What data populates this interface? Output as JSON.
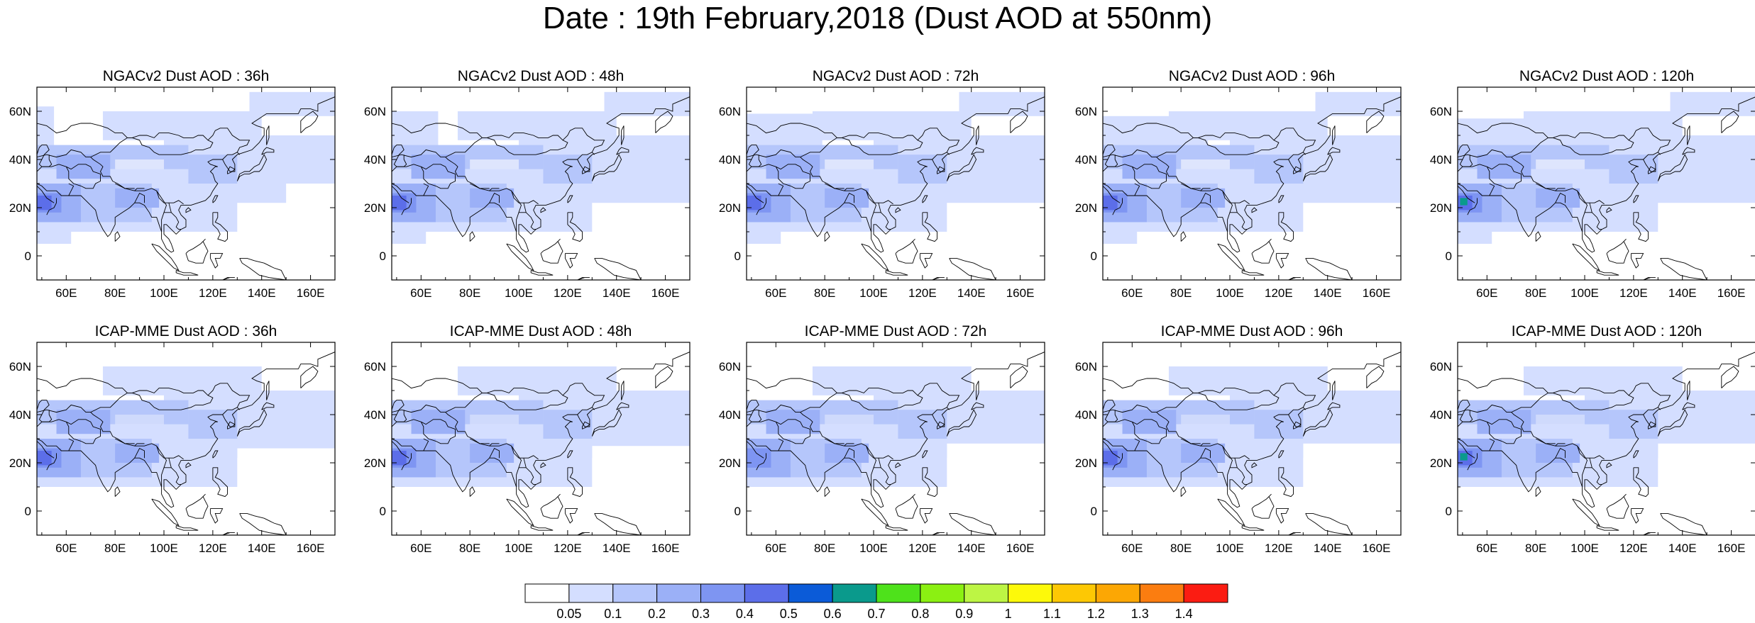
{
  "title": "Date : 19th February,2018 (Dust AOD at 550nm)",
  "panels": [
    {
      "title": "NGACv2 Dust AOD : 36h"
    },
    {
      "title": "NGACv2 Dust AOD : 48h"
    },
    {
      "title": "NGACv2 Dust AOD : 72h"
    },
    {
      "title": "NGACv2 Dust AOD : 96h"
    },
    {
      "title": "NGACv2 Dust AOD : 120h"
    },
    {
      "title": "ICAP-MME Dust AOD : 36h"
    },
    {
      "title": "ICAP-MME Dust AOD : 48h"
    },
    {
      "title": "ICAP-MME Dust AOD : 72h"
    },
    {
      "title": "ICAP-MME Dust AOD : 96h"
    },
    {
      "title": "ICAP-MME Dust AOD : 120h"
    }
  ],
  "map": {
    "lon_range": [
      48,
      170
    ],
    "lat_range": [
      -10,
      70
    ],
    "lon_ticks": [
      "60E",
      "80E",
      "100E",
      "120E",
      "140E",
      "160E"
    ],
    "lat_ticks": [
      "60N",
      "40N",
      "20N",
      "0"
    ]
  },
  "colorbar": {
    "labels": [
      "0.05",
      "0.1",
      "0.2",
      "0.3",
      "0.4",
      "0.5",
      "0.6",
      "0.7",
      "0.8",
      "0.9",
      "1",
      "1.1",
      "1.2",
      "1.3",
      "1.4"
    ],
    "colors": [
      "#ffffff",
      "#d4deff",
      "#b5c6fb",
      "#9bb0f7",
      "#7e95f2",
      "#5c6ee9",
      "#0b5bd8",
      "#0a9a8c",
      "#4ee21b",
      "#8bf012",
      "#bdf544",
      "#fdf90a",
      "#fdc804",
      "#fca704",
      "#fb7d10",
      "#fb1c12"
    ]
  }
}
